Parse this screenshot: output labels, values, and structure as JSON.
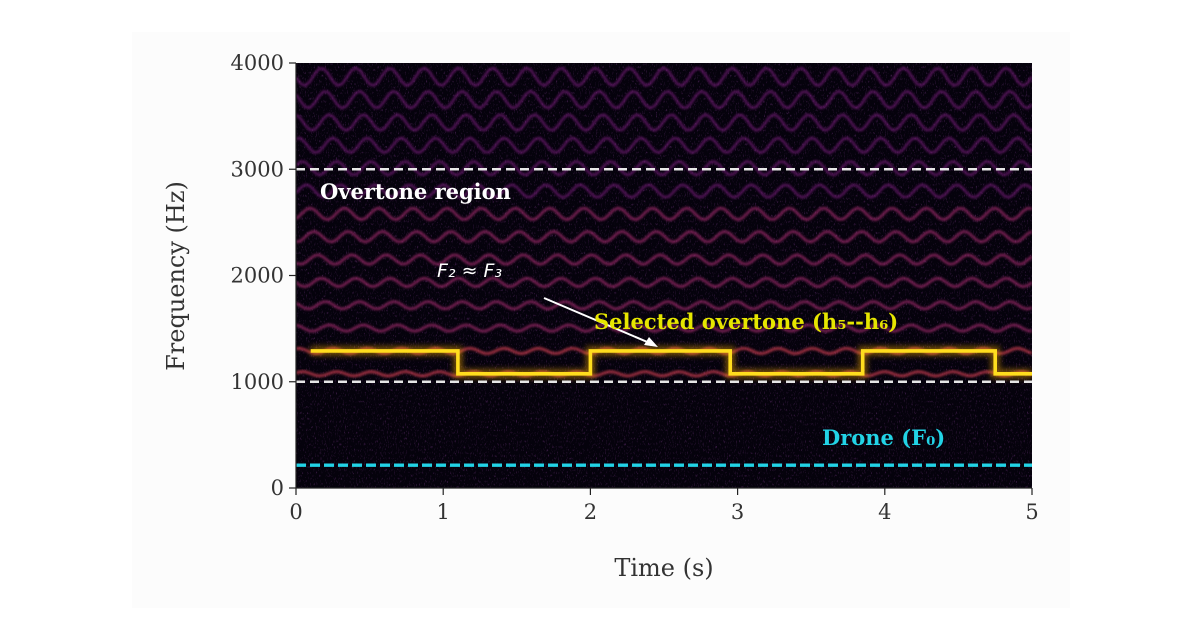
{
  "chart_data": {
    "type": "heatmap",
    "subtype": "spectrogram",
    "colormap": "inferno",
    "xlabel": "Time (s)",
    "ylabel": "Frequency (Hz)",
    "xlim": [
      0,
      5
    ],
    "ylim": [
      0,
      4000
    ],
    "xticks": [
      "0",
      "1",
      "2",
      "3",
      "4",
      "5"
    ],
    "yticks": [
      "0",
      "1000",
      "2000",
      "3000",
      "4000"
    ],
    "drone_f0_hz": 215,
    "harmonic_spacing_hz": 215,
    "reference_lines": [
      {
        "y": 3000,
        "style": "dashed",
        "color": "#e6e6e6"
      },
      {
        "y": 1000,
        "style": "dashed",
        "color": "#e6e6e6"
      },
      {
        "y": 215,
        "style": "dashed",
        "color": "#f07f2c"
      }
    ],
    "selected_overtone": {
      "color": "#ffdd1e",
      "segments": [
        {
          "t": [
            0.1,
            1.1
          ],
          "f": 1290
        },
        {
          "t": [
            1.1,
            2.0
          ],
          "f": 1075
        },
        {
          "t": [
            2.0,
            2.95
          ],
          "f": 1290
        },
        {
          "t": [
            2.95,
            3.85
          ],
          "f": 1075
        },
        {
          "t": [
            3.85,
            4.75
          ],
          "f": 1290
        },
        {
          "t": [
            4.75,
            5.0
          ],
          "f": 1075
        }
      ]
    },
    "annotations": {
      "overtone_region": "Overtone region",
      "formant_label": "F₂ ≈ F₃",
      "selected_label": "Selected overtone (h₅--h₆)",
      "drone_label": "Drone (F₀)"
    },
    "annotation_colors": {
      "overtone_region": "#ffffff",
      "formant_label": "#ffffff",
      "selected_label": "#e6e600",
      "drone_label": "#22d3e6"
    }
  }
}
